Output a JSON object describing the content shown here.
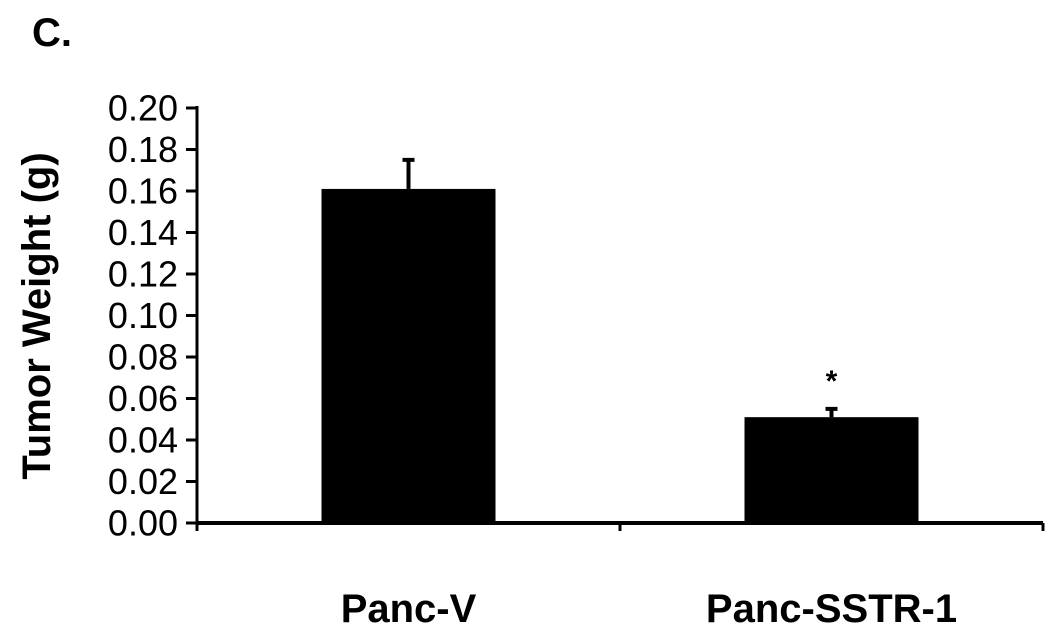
{
  "panel_label": "C.",
  "chart_data": {
    "type": "bar",
    "title": "",
    "xlabel": "",
    "ylabel": "Tumor Weight (g)",
    "categories": [
      "Panc-V",
      "Panc-SSTR-1"
    ],
    "values": [
      0.161,
      0.051
    ],
    "error": [
      0.014,
      0.004
    ],
    "annotations": [
      "",
      "*"
    ],
    "ylim": [
      0,
      0.2
    ],
    "yticks": [
      "0.00",
      "0.02",
      "0.04",
      "0.06",
      "0.08",
      "0.10",
      "0.12",
      "0.14",
      "0.16",
      "0.18",
      "0.20"
    ],
    "grid": false,
    "legend": "none",
    "bar_color": "#000000"
  }
}
